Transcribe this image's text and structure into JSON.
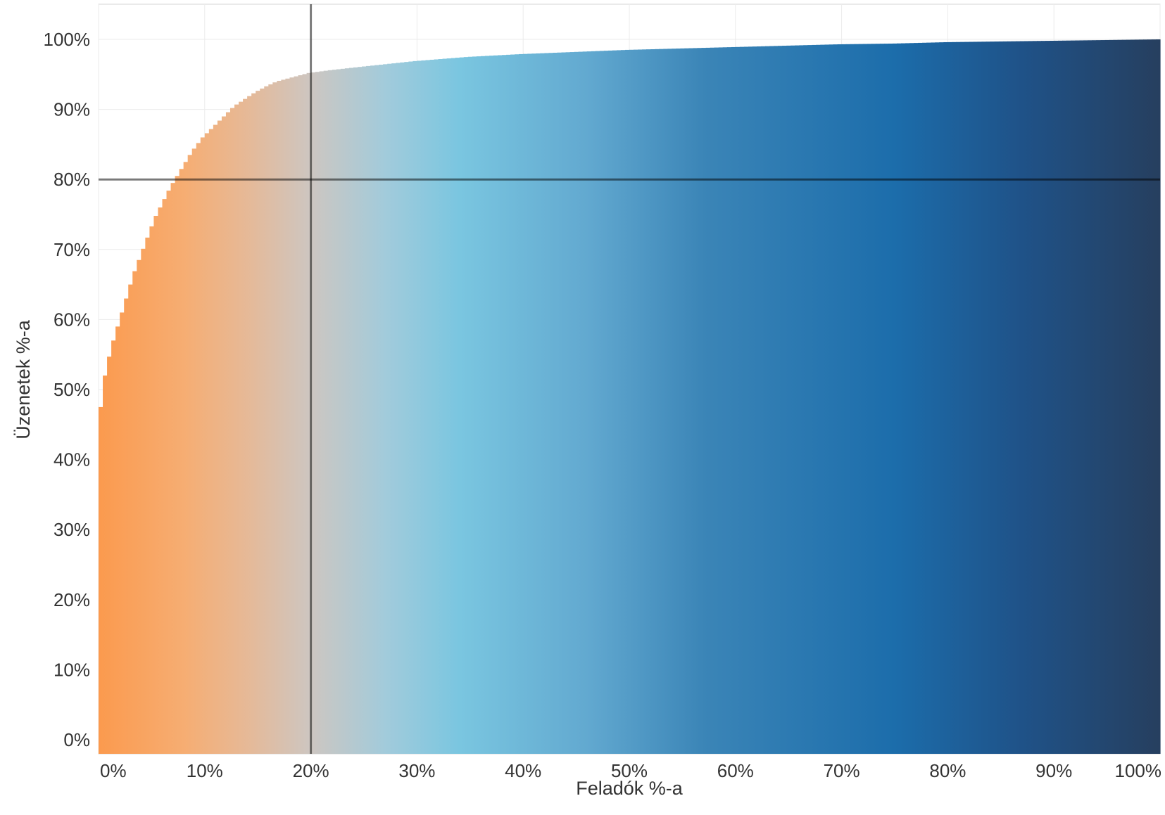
{
  "chart_data": {
    "type": "area",
    "style": "cumulative stepped bars (Pareto curve)",
    "xlabel": "Feladók %-a",
    "ylabel": "Üzenetek %-a",
    "xlim": [
      0,
      100
    ],
    "ylim": [
      0,
      100
    ],
    "x_ticks": [
      "0%",
      "10%",
      "20%",
      "30%",
      "40%",
      "50%",
      "60%",
      "70%",
      "80%",
      "90%",
      "100%"
    ],
    "y_ticks": [
      "0%",
      "10%",
      "20%",
      "30%",
      "40%",
      "50%",
      "60%",
      "70%",
      "80%",
      "90%",
      "100%"
    ],
    "reference_lines": {
      "x": 20,
      "y": 80
    },
    "grid": true,
    "color_gradient": [
      {
        "x": 0,
        "color": "#fb9a4e"
      },
      {
        "x": 8,
        "color": "#f6ad72"
      },
      {
        "x": 14,
        "color": "#e6b997"
      },
      {
        "x": 20,
        "color": "#cdc6c1"
      },
      {
        "x": 27,
        "color": "#a2cbdb"
      },
      {
        "x": 34,
        "color": "#7ac6e0"
      },
      {
        "x": 46,
        "color": "#62a9d0"
      },
      {
        "x": 57,
        "color": "#3b85b7"
      },
      {
        "x": 75,
        "color": "#1c6dab"
      },
      {
        "x": 87,
        "color": "#1f5288"
      },
      {
        "x": 100,
        "color": "#263f5f"
      }
    ],
    "series": [
      {
        "x": [
          0,
          0.3,
          0.6,
          1,
          1.5,
          2,
          2.5,
          3,
          3.5,
          4,
          4.5,
          5,
          5.5,
          6,
          6.5,
          7,
          8,
          9,
          10,
          11,
          12,
          13,
          14,
          15,
          16,
          17,
          18,
          19,
          20,
          22,
          25,
          30,
          35,
          40,
          45,
          50,
          55,
          60,
          65,
          70,
          75,
          80,
          85,
          90,
          95,
          100
        ],
        "y": [
          40,
          46,
          50.5,
          53.5,
          56.5,
          59,
          61.5,
          64,
          66.5,
          68.5,
          70.5,
          72.5,
          74.5,
          76,
          77.5,
          79,
          81.5,
          84,
          86,
          87.5,
          89,
          90.5,
          91.5,
          92.5,
          93.3,
          94,
          94.4,
          94.8,
          95.2,
          95.6,
          96.1,
          96.9,
          97.5,
          97.9,
          98.2,
          98.5,
          98.7,
          98.9,
          99.1,
          99.3,
          99.4,
          99.6,
          99.7,
          99.8,
          99.9,
          100
        ]
      }
    ]
  }
}
